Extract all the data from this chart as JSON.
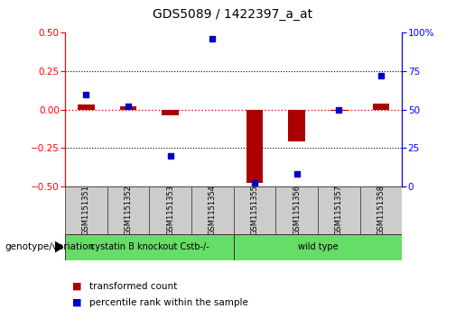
{
  "title": "GDS5089 / 1422397_a_at",
  "samples": [
    "GSM1151351",
    "GSM1151352",
    "GSM1151353",
    "GSM1151354",
    "GSM1151355",
    "GSM1151356",
    "GSM1151357",
    "GSM1151358"
  ],
  "transformed_count": [
    0.03,
    0.02,
    -0.04,
    0.0,
    -0.48,
    -0.21,
    -0.01,
    0.04
  ],
  "percentile_rank": [
    60,
    52,
    20,
    96,
    2,
    8,
    50,
    72
  ],
  "group1_label": "cystatin B knockout Cstb-/-",
  "group1_samples": [
    0,
    1,
    2,
    3
  ],
  "group2_label": "wild type",
  "group2_samples": [
    4,
    5,
    6,
    7
  ],
  "group_color": "#66dd66",
  "bar_color": "#aa0000",
  "dot_color": "#0000cc",
  "sample_box_color": "#cccccc",
  "yticks_left": [
    -0.5,
    -0.25,
    0.0,
    0.25,
    0.5
  ],
  "yticks_right": [
    0,
    25,
    50,
    75,
    100
  ],
  "legend_bar": "transformed count",
  "legend_dot": "percentile rank within the sample",
  "genotype_label": "genotype/variation",
  "bar_width": 0.4
}
